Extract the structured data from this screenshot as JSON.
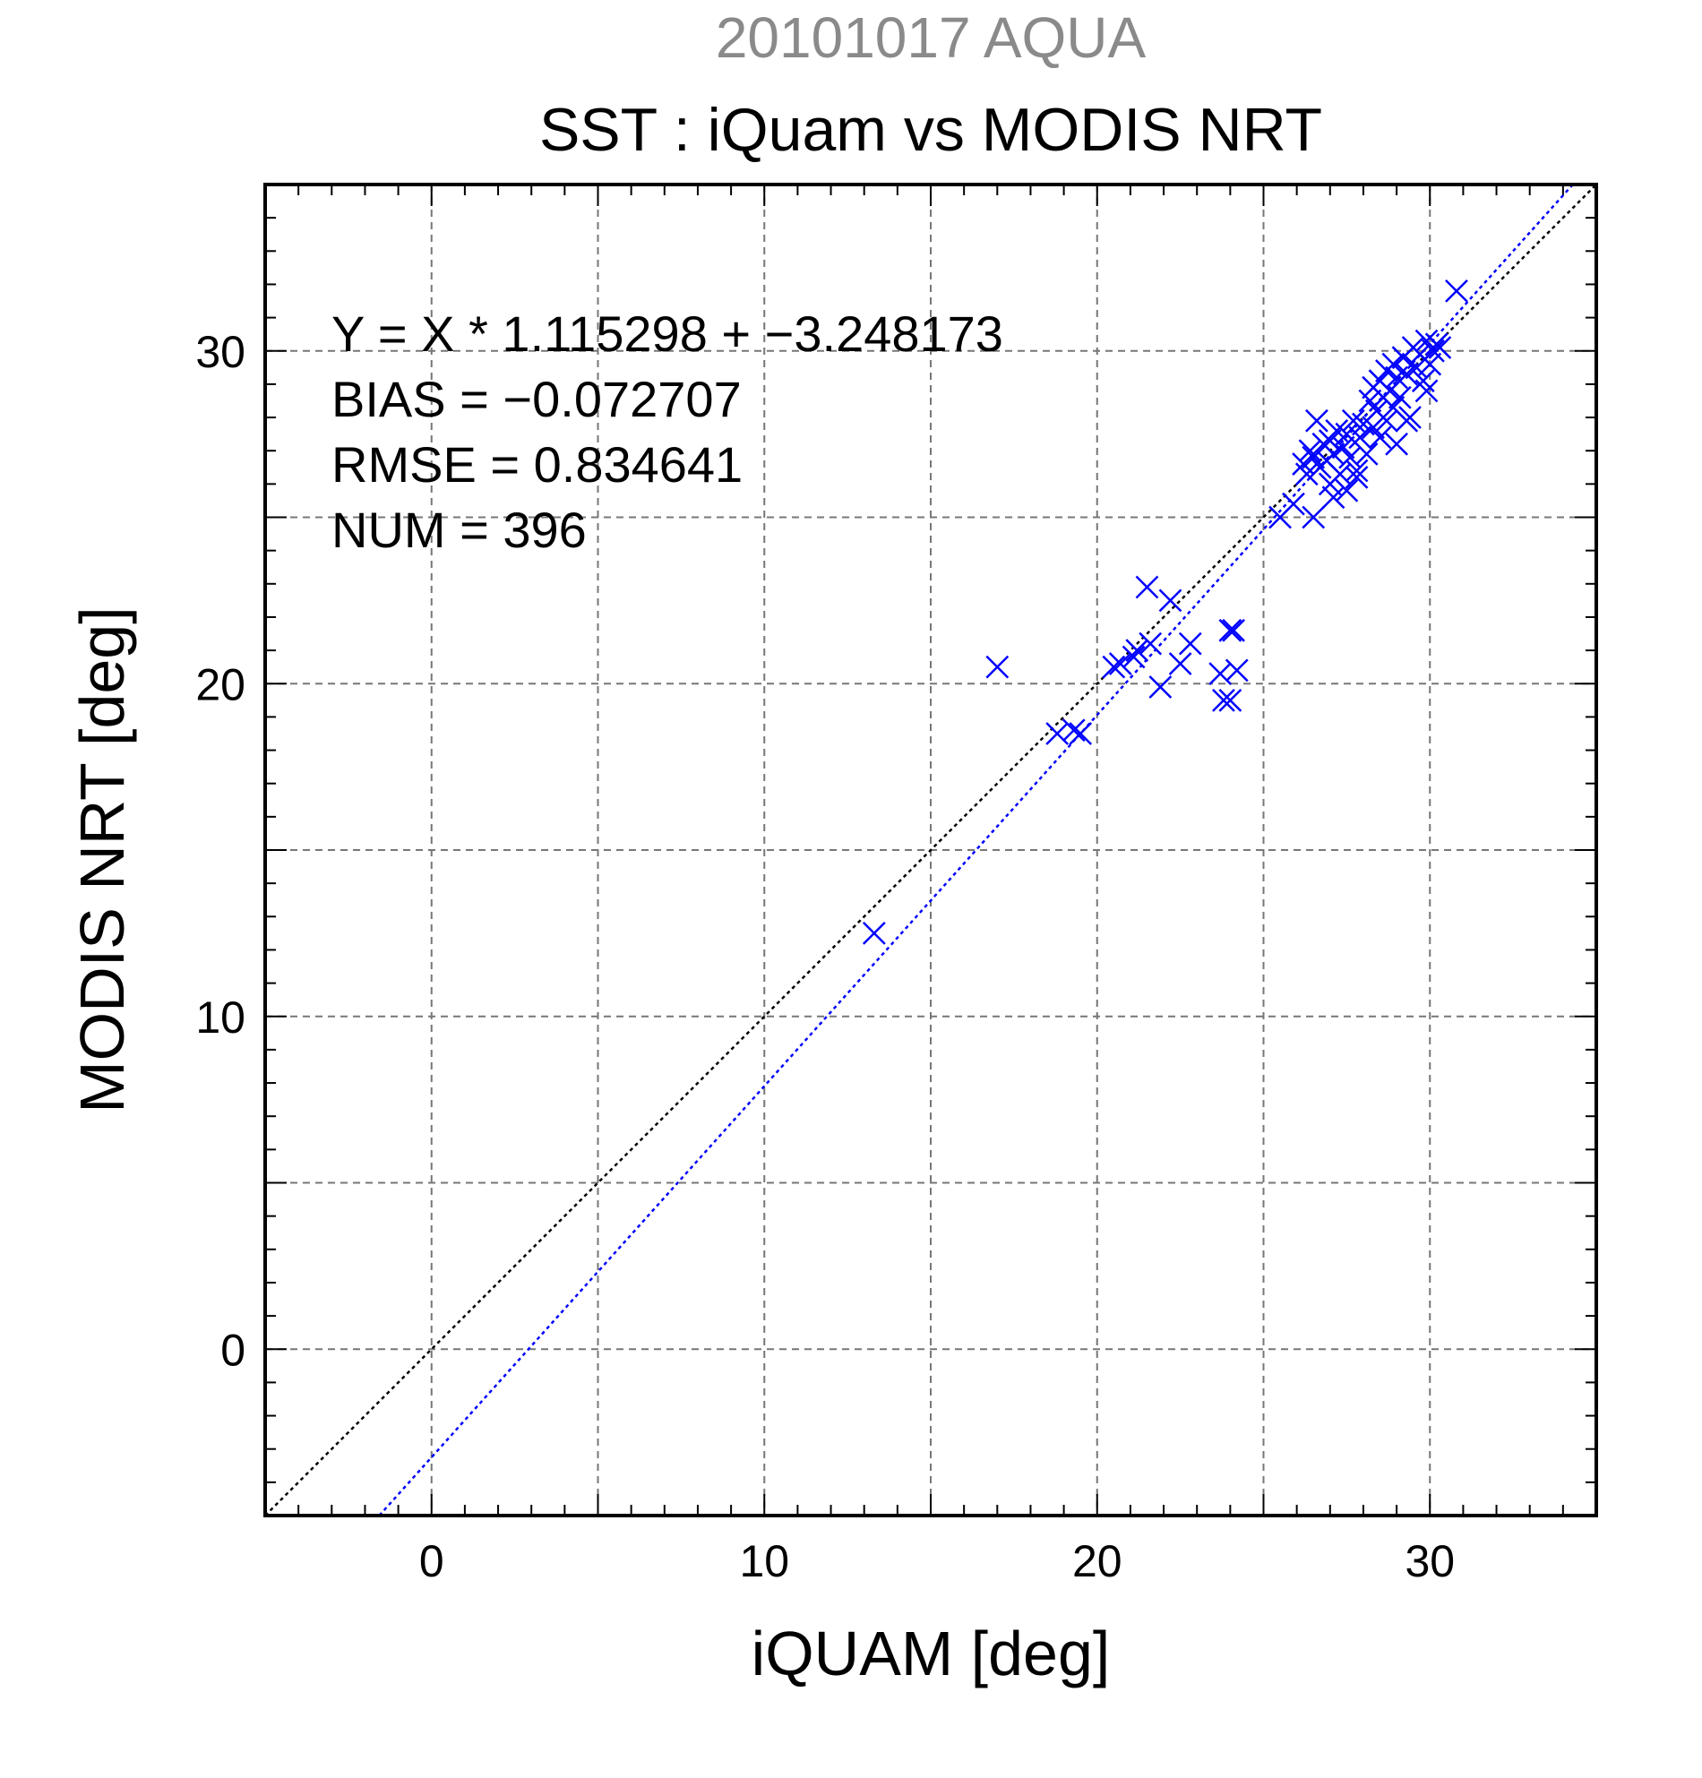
{
  "chart_data": {
    "type": "scatter",
    "date_title": "20101017 AQUA",
    "title": "SST : iQuam vs MODIS NRT",
    "xlabel": "iQUAM [deg]",
    "ylabel": "MODIS NRT [deg]",
    "xlim": [
      -5,
      35
    ],
    "ylim": [
      -5,
      35
    ],
    "xticks": [
      0,
      10,
      20,
      30
    ],
    "yticks": [
      0,
      10,
      20,
      30
    ],
    "grid": true,
    "stats": [
      "Y = X * 1.115298 + −3.248173",
      "BIAS = −0.072707",
      "RMSE = 0.834641",
      "NUM = 396"
    ],
    "fit": {
      "slope": 1.115298,
      "intercept": -3.248173
    },
    "colors": {
      "points": "#0000ff",
      "fit_line": "#0000ff",
      "identity_line": "#000000",
      "grid": "#777777",
      "date_title": "#8a8a8a"
    },
    "series": [
      {
        "marker": "x",
        "points": [
          [
            13.3,
            12.5
          ],
          [
            17.0,
            20.5
          ],
          [
            18.8,
            18.5
          ],
          [
            19.3,
            18.6
          ],
          [
            19.5,
            18.5
          ],
          [
            20.5,
            20.5
          ],
          [
            20.7,
            20.6
          ],
          [
            21.1,
            20.8
          ],
          [
            21.2,
            21.0
          ],
          [
            21.5,
            22.9
          ],
          [
            21.6,
            21.2
          ],
          [
            21.9,
            19.9
          ],
          [
            22.2,
            22.5
          ],
          [
            22.5,
            20.6
          ],
          [
            22.8,
            21.2
          ],
          [
            23.7,
            20.3
          ],
          [
            23.8,
            19.5
          ],
          [
            24.0,
            19.5
          ],
          [
            24.0,
            21.6
          ],
          [
            24.1,
            21.6
          ],
          [
            24.2,
            20.4
          ],
          [
            25.5,
            25.0
          ],
          [
            25.9,
            25.4
          ],
          [
            26.2,
            26.6
          ],
          [
            26.3,
            26.3
          ],
          [
            26.4,
            27.0
          ],
          [
            26.5,
            25.0
          ],
          [
            26.5,
            26.8
          ],
          [
            26.6,
            27.9
          ],
          [
            26.7,
            26.5
          ],
          [
            26.8,
            27.2
          ],
          [
            26.9,
            26.7
          ],
          [
            27.0,
            26.0
          ],
          [
            27.0,
            27.3
          ],
          [
            27.1,
            25.6
          ],
          [
            27.1,
            26.9
          ],
          [
            27.2,
            27.6
          ],
          [
            27.3,
            26.3
          ],
          [
            27.4,
            27.1
          ],
          [
            27.5,
            25.8
          ],
          [
            27.5,
            27.5
          ],
          [
            27.6,
            26.8
          ],
          [
            27.7,
            27.9
          ],
          [
            27.8,
            26.4
          ],
          [
            27.8,
            26.2
          ],
          [
            27.9,
            27.4
          ],
          [
            28.0,
            27.8
          ],
          [
            28.1,
            26.9
          ],
          [
            28.2,
            28.5
          ],
          [
            28.3,
            27.7
          ],
          [
            28.3,
            28.9
          ],
          [
            28.4,
            28.2
          ],
          [
            28.5,
            27.4
          ],
          [
            28.5,
            29.1
          ],
          [
            28.6,
            28.6
          ],
          [
            28.7,
            27.9
          ],
          [
            28.7,
            29.4
          ],
          [
            28.8,
            28.8
          ],
          [
            28.9,
            28.3
          ],
          [
            28.9,
            29.6
          ],
          [
            29.0,
            27.2
          ],
          [
            29.0,
            29.2
          ],
          [
            29.1,
            28.6
          ],
          [
            29.2,
            29.8
          ],
          [
            29.3,
            29.3
          ],
          [
            29.3,
            27.9
          ],
          [
            29.4,
            28.0
          ],
          [
            29.5,
            30.1
          ],
          [
            29.6,
            29.5
          ],
          [
            29.7,
            29.9
          ],
          [
            29.8,
            29.1
          ],
          [
            29.9,
            28.8
          ],
          [
            29.9,
            30.3
          ],
          [
            30.0,
            29.6
          ],
          [
            30.1,
            30.0
          ],
          [
            30.2,
            30.2
          ],
          [
            30.3,
            30.1
          ],
          [
            30.8,
            31.8
          ]
        ]
      }
    ]
  }
}
